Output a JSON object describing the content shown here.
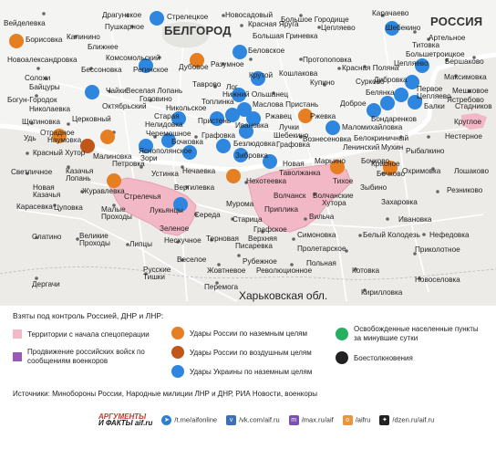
{
  "map": {
    "country_label": "РОССИЯ",
    "city_label": "БЕЛГОРОД",
    "region_label": "Харьковская обл.",
    "colors": {
      "territory": "#f2b8c6",
      "border": "#e8a0b0",
      "advance": "#9b59b6",
      "russian_ground": "#e67e22",
      "russian_air": "#d35400",
      "ukraine_ground": "#2e86de",
      "liberated": "#27ae60",
      "combat": "#222222"
    },
    "places": [
      "Вейделевка",
      "Борисовка",
      "Драгунское",
      "Стрелецкое",
      "Новосадовый",
      "Большое Городище",
      "Карачаево",
      "Калинино",
      "Пушкарное",
      "Белгород",
      "Большое Гриневка",
      "Цепляево",
      "Шебекино",
      "Новоалександровка",
      "Ближнее",
      "Красная Яруга",
      "Беловское",
      "Просторе",
      "Пенье",
      "Бершаково",
      "Солохи",
      "Комсомольский",
      "Никольское",
      "Протопоповка",
      "Артельное",
      "Байцуры",
      "Бессоновка",
      "Регинское",
      "Дубовое",
      "Разумное",
      "Кирпичный",
      "Крутой",
      "Кошлакова",
      "Красная Поляна",
      "Бельгинка",
      "Богун-Городок",
      "Чайки",
      "Веселая Лопань",
      "Головино",
      "Таврово",
      "Нижний Ольшанец",
      "Маслова Пристань",
      "Купино",
      "Первое Цепляево",
      "Николаевка",
      "Октябрьский",
      "Никольское",
      "Топлинка",
      "Ржавец",
      "Бондаренков",
      "Мешковое",
      "Щетиновка",
      "Церковный",
      "Старая",
      "Нелидовка",
      "Пристень",
      "Ржевка",
      "Стадников",
      "Отрадное",
      "Рождественно",
      "Вознесеновка",
      "Лучки",
      "Безлюдовка",
      "Грибовка",
      "Малиновка",
      "Черемошное",
      "Граковка",
      "Шебекино",
      "Маломихайловка",
      "Белокриничный",
      "Мухин",
      "Рыбалкино",
      "Удь",
      "Наумовка",
      "Красный Хутор",
      "Бочковка",
      "Бочково",
      "Новая",
      "Тихое",
      "Красное",
      "Малиновка",
      "Яснополянское",
      "Журавлевка",
      "Уды",
      "Светличное",
      "Казачья Лопань",
      "Устинка",
      "Нечаевка",
      "Таволжанка",
      "Бочково",
      "Охримовка",
      "Лошаково",
      "Резниково",
      "Новая Казачья",
      "Журавлевка",
      "Стрелечья",
      "Вергилевка",
      "Нехотеевка",
      "Мурома",
      "Волчанск",
      "Волчанские Хутора",
      "Карасевка",
      "Цуповка",
      "Малые Проходы",
      "Лукьянцы",
      "Середа",
      "Зыбино",
      "Захаровка",
      "Старица",
      "Приплика",
      "Ивановка",
      "Вильча",
      "Слатино",
      "Великие Проходы",
      "Липцы",
      "Черкасская Лозовая",
      "Терновая",
      "Графское",
      "Симоновка",
      "Белый Колодезь",
      "Нефедовка",
      "Дергачи",
      "Русские Тишки",
      "Веселое",
      "Рубежное",
      "Пролетарское",
      "Приколотное",
      "Верхняя Писаревка",
      "Польная",
      "Жовтневое",
      "Революционное",
      "Котовка",
      "Новоселовка",
      "Перемога",
      "Кирилловка",
      "Огурцовка",
      "Круглое",
      "Нестерное",
      "Максимовка",
      "Старица",
      "Балки",
      "Сурково",
      "Титовка",
      "Артельное"
    ]
  },
  "legend": {
    "title": "Взяты под контроль Россией, ДНР и ЛНР:",
    "items": [
      {
        "label": "Территории с начала спецоперации"
      },
      {
        "label": "Продвижение российских войск по сообщениям военкоров"
      },
      {
        "label": "Удары России по наземным целям"
      },
      {
        "label": "Удары России по воздушным целям"
      },
      {
        "label": "Удары Украины по наземным целям"
      },
      {
        "label": "Освобожденные населенные пункты за минувшие сутки"
      },
      {
        "label": "Боестолкновения"
      }
    ],
    "sources": "Источники: Минобороны России, Народные милиции ЛНР и ДНР, РИА Новости, военкоры"
  },
  "footer": {
    "logo_line1": "АРГУМЕНТЫ",
    "logo_line2": "И ФАКТЫ aif.ru",
    "links": [
      "/t.me/aifonline",
      "/vk.com/aif.ru",
      "/max.ru/aif",
      "/aifru",
      "/dzen.ru/aif.ru"
    ]
  }
}
